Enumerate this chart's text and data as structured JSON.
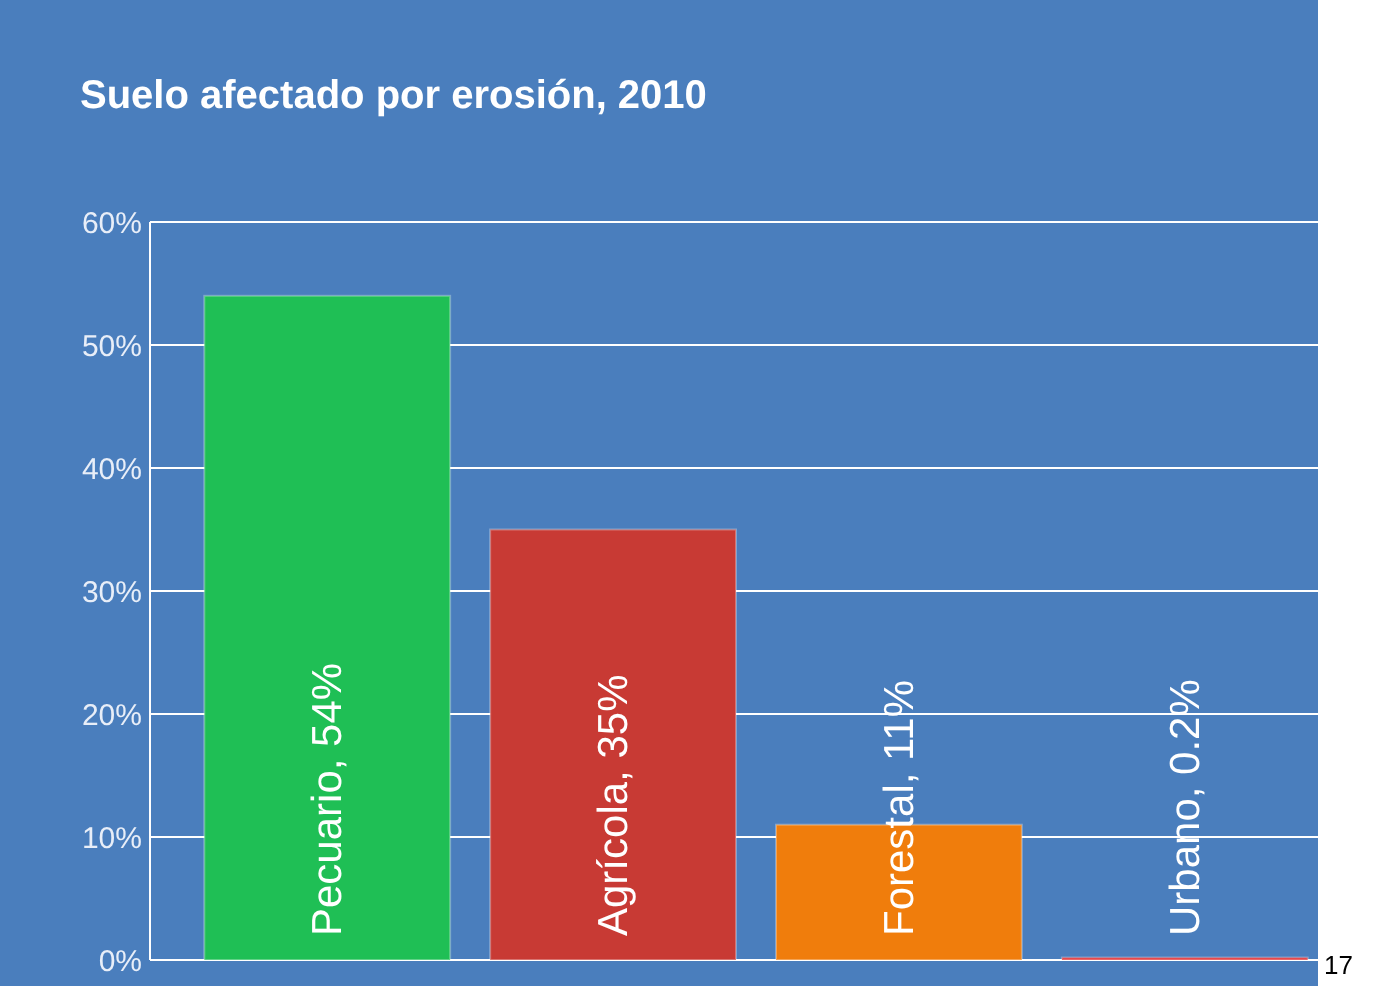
{
  "chart_data": {
    "type": "bar",
    "title": "Suelo afectado por erosión, 2010",
    "categories": [
      null,
      null,
      null,
      null
    ],
    "values": [
      54,
      35,
      11,
      0.2
    ],
    "colors": [
      "#1fbf55",
      "#c83a34",
      "#f07d0c",
      "#e0262a"
    ],
    "value_labels": [
      "Pecuario, 54%",
      "Agrícola, 35%",
      "Forestal, 11%",
      "Urbano, 0.2%"
    ],
    "ylim": [
      0,
      60
    ],
    "yticks": [
      {
        "value": 0,
        "label": "0%"
      },
      {
        "value": 10,
        "label": "10%"
      },
      {
        "value": 20,
        "label": "20%"
      },
      {
        "value": 30,
        "label": "30%"
      },
      {
        "value": 40,
        "label": "40%"
      },
      {
        "value": 50,
        "label": "50%"
      },
      {
        "value": 60,
        "label": "60%"
      }
    ],
    "grid": "y",
    "annotations": [
      "17"
    ]
  }
}
